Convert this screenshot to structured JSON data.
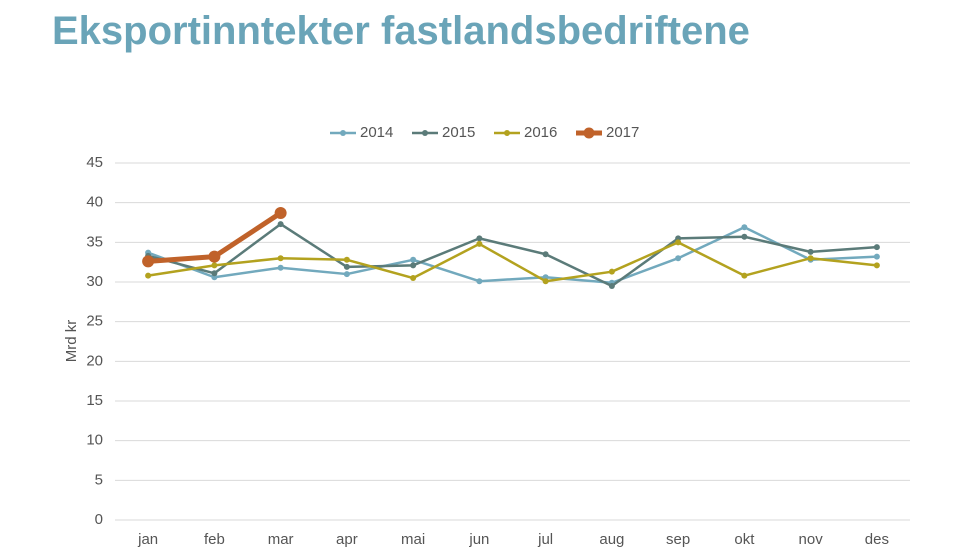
{
  "chart_data": {
    "type": "line",
    "title": "Eksportinntekter fastlandsbedriftene",
    "y_label": "Mrd kr",
    "categories": [
      "jan",
      "feb",
      "mar",
      "apr",
      "mai",
      "jun",
      "jul",
      "aug",
      "sep",
      "okt",
      "nov",
      "des"
    ],
    "series": [
      {
        "name": "2014",
        "color": "#72a9bd",
        "values": [
          33.7,
          30.6,
          31.8,
          31.0,
          32.8,
          30.1,
          30.6,
          29.9,
          33.0,
          36.9,
          32.8,
          33.2
        ]
      },
      {
        "name": "2015",
        "color": "#5b7b79",
        "values": [
          33.3,
          31.1,
          37.3,
          31.9,
          32.1,
          35.5,
          33.5,
          29.5,
          35.5,
          35.7,
          33.8,
          34.4
        ]
      },
      {
        "name": "2016",
        "color": "#b3a21f",
        "values": [
          30.8,
          32.1,
          33.0,
          32.8,
          30.5,
          34.8,
          30.1,
          31.3,
          35.0,
          30.8,
          33.0,
          32.1
        ]
      },
      {
        "name": "2017",
        "color": "#c0622a",
        "values": [
          32.6,
          33.2,
          38.7,
          null,
          null,
          null,
          null,
          null,
          null,
          null,
          null,
          null
        ]
      }
    ],
    "ylim": [
      0,
      45
    ],
    "yticks": [
      0,
      5,
      10,
      15,
      20,
      25,
      30,
      35,
      40,
      45
    ],
    "grid": true,
    "legend": "top"
  }
}
